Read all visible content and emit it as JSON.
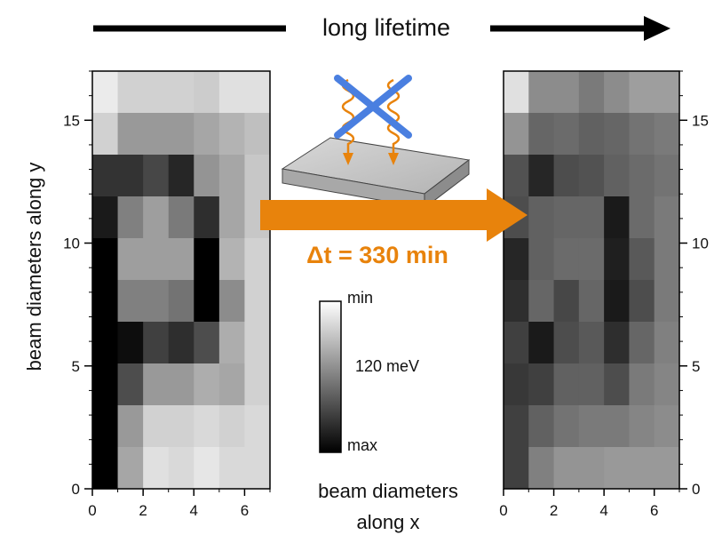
{
  "header": {
    "label": "long lifetime"
  },
  "y_axis_title": "beam diameters along  y",
  "x_axis_title_line1": "beam diameters",
  "x_axis_title_line2": "along  x",
  "transition": {
    "label": "Δt = 330 min",
    "arrow_color": "#e8830c"
  },
  "colorbar": {
    "top_label": "min",
    "mid_label": "120 meV",
    "bottom_label": "max"
  },
  "chart_data": [
    {
      "type": "heatmap",
      "title": "",
      "x_ticks": [
        "0",
        "2",
        "4",
        "6"
      ],
      "y_ticks": [
        "0",
        "5",
        "10",
        "15"
      ],
      "xlim": [
        0,
        7
      ],
      "ylim": [
        0,
        17
      ],
      "value_scale": "0 = black (max) … 1 = white (min)",
      "rows_top_to_bottom": [
        [
          0.92,
          0.82,
          0.82,
          0.82,
          0.8,
          0.88,
          0.88
        ],
        [
          0.82,
          0.6,
          0.6,
          0.6,
          0.65,
          0.7,
          0.75
        ],
        [
          0.2,
          0.2,
          0.28,
          0.15,
          0.58,
          0.65,
          0.78
        ],
        [
          0.1,
          0.5,
          0.62,
          0.48,
          0.18,
          0.65,
          0.78
        ],
        [
          0.0,
          0.62,
          0.62,
          0.62,
          0.0,
          0.7,
          0.82
        ],
        [
          0.0,
          0.5,
          0.5,
          0.45,
          0.0,
          0.55,
          0.82
        ],
        [
          0.0,
          0.05,
          0.25,
          0.18,
          0.3,
          0.68,
          0.82
        ],
        [
          0.0,
          0.3,
          0.6,
          0.6,
          0.68,
          0.65,
          0.82
        ],
        [
          0.0,
          0.6,
          0.82,
          0.82,
          0.85,
          0.82,
          0.85
        ],
        [
          0.0,
          0.65,
          0.88,
          0.85,
          0.9,
          0.85,
          0.85
        ]
      ]
    },
    {
      "type": "heatmap",
      "title": "",
      "x_ticks": [
        "0",
        "2",
        "4",
        "6"
      ],
      "y_ticks": [
        "0",
        "5",
        "10",
        "15"
      ],
      "xlim": [
        0,
        7
      ],
      "ylim": [
        0,
        17
      ],
      "value_scale": "0 = black (max) … 1 = white (min)",
      "rows_top_to_bottom": [
        [
          0.88,
          0.55,
          0.55,
          0.48,
          0.55,
          0.62,
          0.62
        ],
        [
          0.58,
          0.4,
          0.42,
          0.38,
          0.4,
          0.45,
          0.48
        ],
        [
          0.32,
          0.15,
          0.3,
          0.32,
          0.38,
          0.42,
          0.45
        ],
        [
          0.3,
          0.38,
          0.4,
          0.4,
          0.1,
          0.42,
          0.48
        ],
        [
          0.15,
          0.38,
          0.42,
          0.42,
          0.12,
          0.35,
          0.48
        ],
        [
          0.18,
          0.4,
          0.28,
          0.4,
          0.1,
          0.3,
          0.48
        ],
        [
          0.25,
          0.1,
          0.3,
          0.35,
          0.18,
          0.4,
          0.5
        ],
        [
          0.22,
          0.25,
          0.38,
          0.38,
          0.3,
          0.48,
          0.52
        ],
        [
          0.25,
          0.38,
          0.45,
          0.48,
          0.48,
          0.52,
          0.55
        ],
        [
          0.25,
          0.5,
          0.58,
          0.58,
          0.6,
          0.6,
          0.6
        ]
      ]
    }
  ]
}
